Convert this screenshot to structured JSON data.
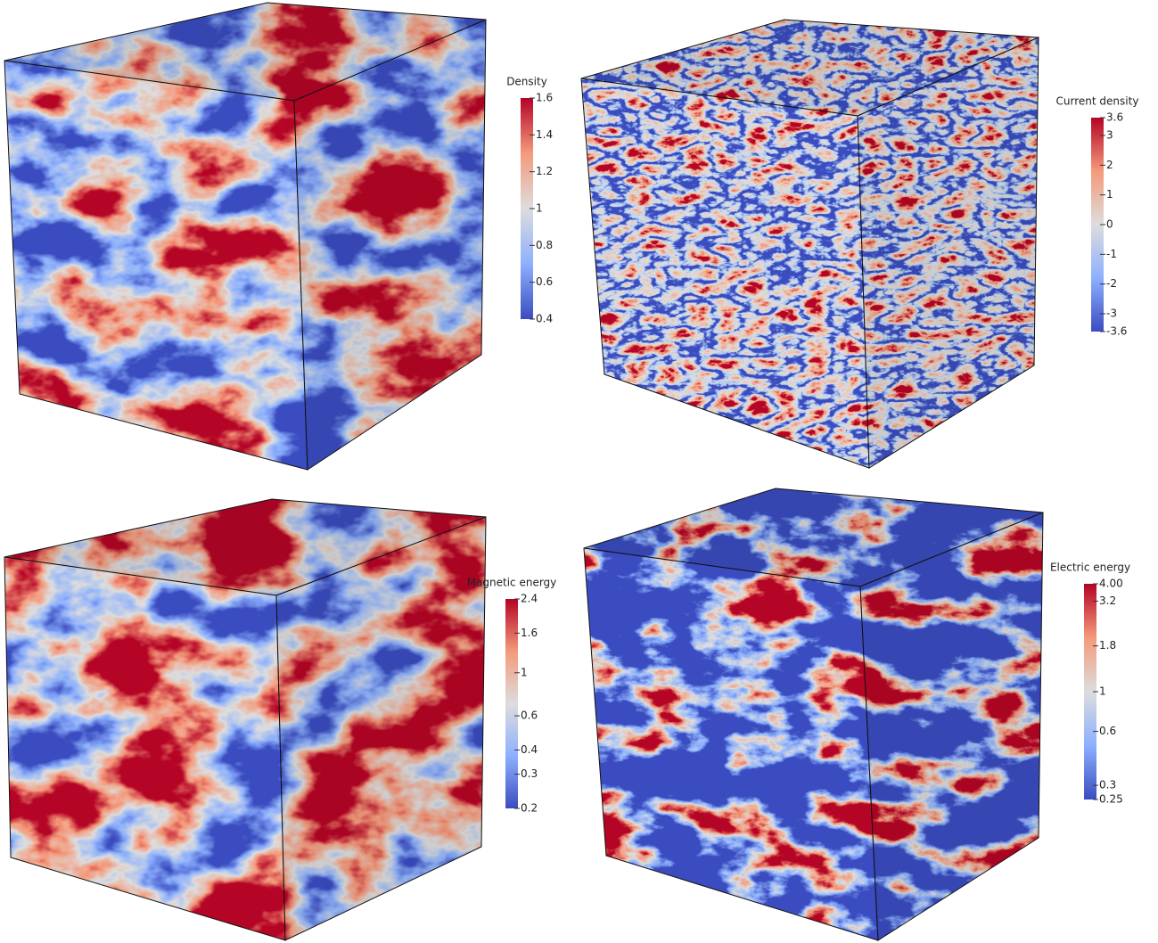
{
  "panels": [
    {
      "title": "Density",
      "scale": "linear",
      "range": [
        0.4,
        1.6
      ],
      "ticks": [
        1.6,
        1.4,
        1.2,
        1,
        0.8,
        0.6,
        0.4
      ]
    },
    {
      "title": "Current density",
      "scale": "linear",
      "range": [
        -3.6,
        3.6
      ],
      "ticks": [
        3.6,
        3,
        2,
        1,
        0,
        -1,
        -2,
        -3,
        -3.6
      ]
    },
    {
      "title": "Magnetic energy",
      "scale": "log",
      "range": [
        0.2,
        2.4
      ],
      "ticks": [
        2.4,
        1.6,
        1,
        0.6,
        0.4,
        0.3,
        0.2
      ]
    },
    {
      "title": "Electric energy",
      "scale": "log",
      "range": [
        0.25,
        4
      ],
      "ticks": [
        {
          "value": 4,
          "label": "4.00"
        },
        3.2,
        1.8,
        1,
        0.6,
        0.3,
        0.25
      ]
    }
  ]
}
